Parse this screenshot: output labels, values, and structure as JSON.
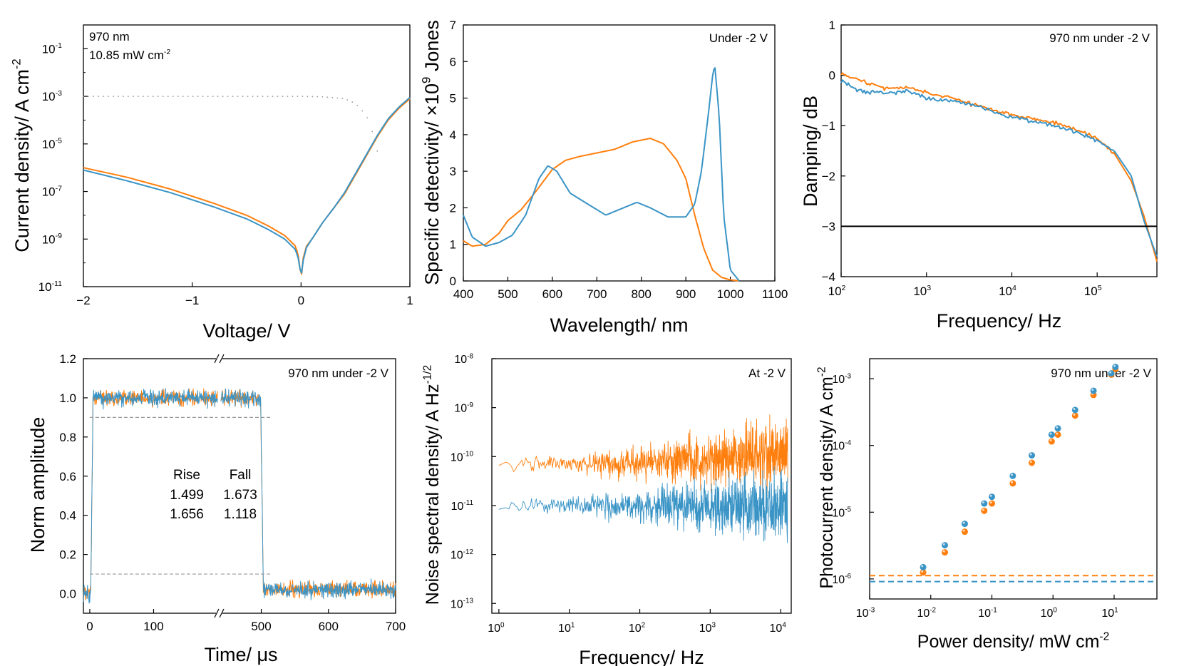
{
  "colors": {
    "orange": "#ff7f0e",
    "blue": "#3a94c6",
    "gray": "#9a9a9a",
    "axis": "#000000"
  },
  "chart_data": [
    {
      "id": "a",
      "type": "line",
      "xlabel": "Voltage/ V",
      "ylabel": "Current density/ A cm",
      "ylabel_sup": "-2",
      "xlim": [
        -2,
        1
      ],
      "ylim_log10": [
        -11,
        0
      ],
      "xticks": [
        -2,
        -1,
        0,
        1
      ],
      "xtick_labels": [
        "−2",
        "−1",
        "0",
        "1"
      ],
      "yticks_log10": [
        -11,
        -9,
        -7,
        -5,
        -3,
        -1
      ],
      "ytick_labels": [
        "10",
        "10",
        "10",
        "10",
        "10",
        "10"
      ],
      "ytick_exps": [
        "-11",
        "-9",
        "-7",
        "-5",
        "-3",
        "-1"
      ],
      "annotation_lines": [
        "970 nm",
        "10.85 mW cm"
      ],
      "annotation_sup": "-2",
      "series": [
        {
          "name": "dark-orange",
          "color": "orange",
          "x": [
            -2,
            -1.6,
            -1.2,
            -0.8,
            -0.5,
            -0.3,
            -0.15,
            -0.05,
            -0.02,
            0.0,
            0.02,
            0.05,
            0.1,
            0.2,
            0.3,
            0.4,
            0.5,
            0.6,
            0.7,
            0.8,
            0.9,
            1.0
          ],
          "ylog10": [
            -6.0,
            -6.4,
            -6.9,
            -7.5,
            -8.0,
            -8.45,
            -8.85,
            -9.3,
            -9.8,
            -10.7,
            -9.8,
            -9.3,
            -9.0,
            -8.3,
            -7.7,
            -7.1,
            -6.3,
            -5.5,
            -4.7,
            -4.0,
            -3.5,
            -3.1
          ]
        },
        {
          "name": "dark-blue",
          "color": "blue",
          "x": [
            -2,
            -1.6,
            -1.2,
            -0.8,
            -0.5,
            -0.3,
            -0.15,
            -0.05,
            -0.02,
            0.0,
            0.02,
            0.05,
            0.1,
            0.2,
            0.3,
            0.4,
            0.5,
            0.6,
            0.7,
            0.8,
            0.9,
            1.0
          ],
          "ylog10": [
            -6.1,
            -6.55,
            -7.05,
            -7.65,
            -8.15,
            -8.6,
            -9.0,
            -9.45,
            -9.9,
            -10.6,
            -9.9,
            -9.35,
            -9.0,
            -8.3,
            -7.7,
            -7.05,
            -6.25,
            -5.45,
            -4.65,
            -3.95,
            -3.45,
            -3.05
          ]
        },
        {
          "name": "photo-orange-dotted",
          "color": "gray",
          "dotted": true,
          "x": [
            -2,
            -1.5,
            -1.0,
            -0.5,
            -0.2,
            0.0,
            0.2,
            0.4,
            0.5,
            0.6,
            0.65,
            0.7
          ],
          "ylog10": [
            -3.0,
            -3.0,
            -3.0,
            -3.0,
            -3.0,
            -3.0,
            -3.02,
            -3.1,
            -3.3,
            -3.8,
            -4.4,
            -5.3
          ]
        }
      ]
    },
    {
      "id": "b",
      "type": "line",
      "xlabel": "Wavelength/ nm",
      "ylabel": "Specific detectivity/ ×10",
      "ylabel_sup": "9",
      "ylabel_tail": " Jones",
      "xlim": [
        400,
        1100
      ],
      "ylim": [
        0,
        7
      ],
      "xticks": [
        400,
        500,
        600,
        700,
        800,
        900,
        1000,
        1100
      ],
      "yticks": [
        0,
        1,
        2,
        3,
        4,
        5,
        6,
        7
      ],
      "annotation": "Under -2 V",
      "series": [
        {
          "name": "orange",
          "color": "orange",
          "x": [
            400,
            420,
            450,
            480,
            500,
            530,
            560,
            600,
            630,
            660,
            700,
            740,
            780,
            820,
            850,
            880,
            900,
            920,
            940,
            960,
            980,
            1000,
            1020
          ],
          "y": [
            1.1,
            0.95,
            1.0,
            1.3,
            1.65,
            1.95,
            2.4,
            3.05,
            3.3,
            3.4,
            3.5,
            3.6,
            3.8,
            3.9,
            3.75,
            3.3,
            2.8,
            1.8,
            0.9,
            0.3,
            0.1,
            0.03,
            0.0
          ]
        },
        {
          "name": "blue",
          "color": "blue",
          "x": [
            400,
            420,
            450,
            480,
            510,
            540,
            570,
            590,
            610,
            640,
            680,
            720,
            760,
            790,
            820,
            860,
            900,
            920,
            935,
            950,
            960,
            965,
            975,
            985,
            1000,
            1020
          ],
          "y": [
            1.8,
            1.2,
            0.95,
            1.05,
            1.25,
            1.8,
            2.8,
            3.15,
            3.0,
            2.4,
            2.1,
            1.8,
            2.0,
            2.15,
            2.0,
            1.75,
            1.75,
            2.1,
            3.0,
            4.5,
            5.6,
            5.9,
            4.5,
            1.8,
            0.3,
            0.0
          ]
        }
      ]
    },
    {
      "id": "c",
      "type": "line",
      "xlabel": "Frequency/ Hz",
      "ylabel": "Damping/ dB",
      "xlim_log10": [
        2,
        5.7
      ],
      "ylim": [
        -4,
        1
      ],
      "xticks_log10": [
        2,
        3,
        4,
        5
      ],
      "xtick_labels": [
        "10",
        "10",
        "10",
        "10"
      ],
      "xtick_exps": [
        "2",
        "3",
        "4",
        "5"
      ],
      "yticks": [
        -4,
        -3,
        -2,
        -1,
        0,
        1
      ],
      "ytick_labels": [
        "−4",
        "−3",
        "−2",
        "−1",
        "0",
        "1"
      ],
      "hline": -3,
      "annotation": "970 nm under -2 V",
      "series": [
        {
          "name": "orange",
          "color": "orange",
          "xlog10": [
            2.0,
            2.2,
            2.5,
            2.8,
            3.0,
            3.3,
            3.6,
            3.9,
            4.2,
            4.5,
            4.8,
            5.0,
            5.2,
            5.4,
            5.55,
            5.7
          ],
          "y": [
            0.05,
            -0.1,
            -0.25,
            -0.25,
            -0.35,
            -0.45,
            -0.6,
            -0.75,
            -0.85,
            -0.95,
            -1.1,
            -1.25,
            -1.55,
            -2.1,
            -2.8,
            -3.7
          ]
        },
        {
          "name": "blue",
          "color": "blue",
          "xlog10": [
            2.0,
            2.2,
            2.5,
            2.8,
            3.0,
            3.3,
            3.6,
            3.9,
            4.2,
            4.5,
            4.8,
            5.0,
            5.2,
            5.4,
            5.55,
            5.7
          ],
          "y": [
            -0.1,
            -0.3,
            -0.35,
            -0.3,
            -0.45,
            -0.5,
            -0.6,
            -0.8,
            -0.9,
            -1.0,
            -1.15,
            -1.3,
            -1.5,
            -2.0,
            -2.9,
            -3.6
          ]
        }
      ]
    },
    {
      "id": "d",
      "type": "line",
      "xlabel": "Time/ μs",
      "ylabel": "Norm amplitude",
      "ylim": [
        -0.1,
        1.2
      ],
      "left_segment": [
        -10,
        200
      ],
      "right_segment": [
        440,
        700
      ],
      "xtick_labels_left": [
        "0",
        "100"
      ],
      "xticks_left": [
        0,
        100
      ],
      "xtick_labels_right": [
        "500",
        "600",
        "700"
      ],
      "xticks_right": [
        500,
        600,
        700
      ],
      "yticks": [
        0.0,
        0.2,
        0.4,
        0.6,
        0.8,
        1.0,
        1.2
      ],
      "ytick_labels": [
        "0.0",
        "0.2",
        "0.4",
        "0.6",
        "0.8",
        "1.0",
        "1.2"
      ],
      "guides": [
        0.9,
        0.1
      ],
      "annotation": "970 nm under -2 V",
      "table": {
        "header": [
          "Rise",
          "Fall"
        ],
        "rows": [
          {
            "color": "orange",
            "values": [
              "1.499",
              "1.673"
            ]
          },
          {
            "color": "blue",
            "values": [
              "1.656",
              "1.118"
            ]
          }
        ]
      },
      "series": [
        {
          "name": "orange",
          "color": "orange"
        },
        {
          "name": "blue",
          "color": "blue"
        }
      ]
    },
    {
      "id": "e",
      "type": "line",
      "xlabel": "Frequency/ Hz",
      "ylabel": "Noise spectral density/ A Hz",
      "ylabel_sup": "-1/2",
      "xlim_log10": [
        -0.1,
        4.15
      ],
      "ylim_log10": [
        -13.2,
        -8
      ],
      "xticks_log10": [
        0,
        1,
        2,
        3,
        4
      ],
      "xtick_labels": [
        "10",
        "10",
        "10",
        "10",
        "10"
      ],
      "xtick_exps": [
        "0",
        "1",
        "2",
        "3",
        "4"
      ],
      "yticks_log10": [
        -13,
        -12,
        -11,
        -10,
        -9,
        -8
      ],
      "ytick_labels": [
        "10",
        "10",
        "10",
        "10",
        "10",
        "10"
      ],
      "ytick_exps": [
        "-13",
        "-12",
        "-11",
        "-10",
        "-9",
        "-8"
      ],
      "annotation": "At -2 V",
      "series": [
        {
          "name": "orange",
          "color": "orange",
          "base_log10": -10.15
        },
        {
          "name": "blue",
          "color": "blue",
          "base_log10": -11.0
        }
      ]
    },
    {
      "id": "f",
      "type": "scatter",
      "xlabel": "Power density/ mW cm",
      "xlabel_sup": "-2",
      "ylabel": "Photocurrent density/ A cm",
      "ylabel_sup": "-2",
      "xlim_log10": [
        -3,
        1.7
      ],
      "ylim_log10": [
        -6.3,
        -2.7
      ],
      "xticks_log10": [
        -3,
        -2,
        -1,
        0,
        1
      ],
      "xtick_labels": [
        "10",
        "10",
        "10",
        "10",
        "10"
      ],
      "xtick_exps": [
        "-3",
        "-2",
        "-1",
        "0",
        "1"
      ],
      "yticks_log10": [
        -6,
        -5,
        -4,
        -3
      ],
      "ytick_labels": [
        "10",
        "10",
        "10",
        "10"
      ],
      "ytick_exps": [
        "-6",
        "-5",
        "-4",
        "-3"
      ],
      "hlines_log10": [
        {
          "color": "orange",
          "y": -5.95
        },
        {
          "color": "blue",
          "y": -6.04
        }
      ],
      "annotation": "970 nm under -2 V",
      "series": [
        {
          "name": "orange",
          "color": "orange",
          "x": [
            0.0075,
            0.017,
            0.036,
            0.075,
            0.1,
            0.22,
            0.45,
            0.95,
            1.2,
            2.3,
            4.6,
            9.0,
            10.5
          ],
          "y": [
            1.25e-06,
            2.5e-06,
            5.1e-06,
            1.05e-05,
            1.35e-05,
            2.7e-05,
            5.5e-05,
            0.000115,
            0.000145,
            0.00028,
            0.00057,
            0.00115,
            0.0014
          ]
        },
        {
          "name": "blue",
          "color": "blue",
          "x": [
            0.0075,
            0.017,
            0.036,
            0.075,
            0.1,
            0.22,
            0.45,
            0.95,
            1.2,
            2.3,
            4.6,
            9.0,
            10.5
          ],
          "y": [
            1.5e-06,
            3.2e-06,
            6.7e-06,
            1.35e-05,
            1.7e-05,
            3.5e-05,
            7.1e-05,
            0.000145,
            0.00018,
            0.00034,
            0.00066,
            0.0012,
            0.0015
          ]
        }
      ]
    }
  ]
}
